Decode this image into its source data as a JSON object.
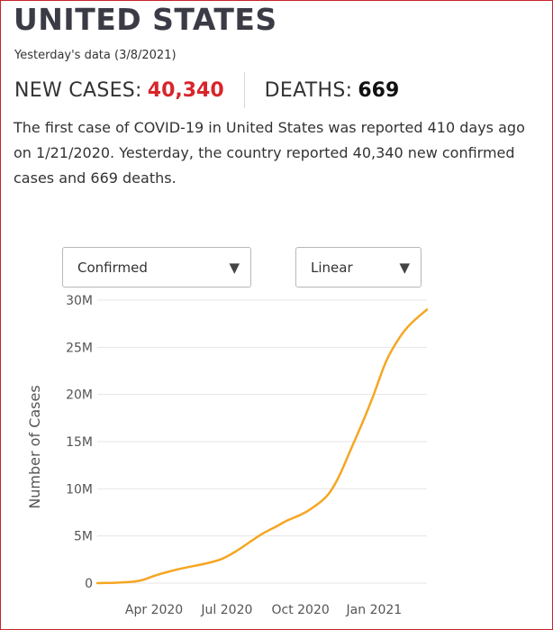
{
  "header": {
    "country": "UNITED STATES",
    "data_date": "Yesterday's data (3/8/2021)"
  },
  "stats": {
    "new_cases_label": "NEW CASES:",
    "new_cases_value": "40,340",
    "deaths_label": "DEATHS:",
    "deaths_value": "669"
  },
  "summary": "The first case of COVID-19 in United States was reported 410 days ago on 1/21/2020. Yesterday, the country reported 40,340 new confirmed cases and 669 deaths.",
  "controls": {
    "metric_selected": "Confirmed",
    "scale_selected": "Linear"
  },
  "colors": {
    "accent_red": "#d8252b",
    "line": "#f5a623",
    "grid": "#e6e6e6"
  },
  "icons": {
    "dropdown": "triangle-down-icon"
  },
  "chart_data": {
    "type": "line",
    "title": "",
    "xlabel": "",
    "ylabel": "Number of Cases",
    "y_tick_labels": [
      "0",
      "5M",
      "10M",
      "15M",
      "20M",
      "25M",
      "30M"
    ],
    "y_ticks": [
      0,
      5000000,
      10000000,
      15000000,
      20000000,
      25000000,
      30000000
    ],
    "ylim": [
      0,
      30000000
    ],
    "x_tick_labels": [
      "Apr 2020",
      "Jul 2020",
      "Oct 2020",
      "Jan 2021"
    ],
    "x_ticks": [
      "2020-04-01",
      "2020-07-01",
      "2020-10-01",
      "2021-01-01"
    ],
    "xlim": [
      "2020-01-21",
      "2021-03-08"
    ],
    "grid": true,
    "series": [
      {
        "name": "",
        "x": [
          "2020-01-21",
          "2020-02-15",
          "2020-03-15",
          "2020-04-01",
          "2020-05-01",
          "2020-06-01",
          "2020-06-20",
          "2020-07-01",
          "2020-07-15",
          "2020-08-01",
          "2020-08-15",
          "2020-09-01",
          "2020-09-15",
          "2020-10-01",
          "2020-10-15",
          "2020-11-01",
          "2020-11-10",
          "2020-11-20",
          "2020-12-01",
          "2020-12-15",
          "2021-01-01",
          "2021-01-15",
          "2021-02-01",
          "2021-02-15",
          "2021-03-08"
        ],
        "y": [
          0,
          30000,
          200000,
          800000,
          1500000,
          2000000,
          2400000,
          2800000,
          3500000,
          4500000,
          5300000,
          6000000,
          6700000,
          7200000,
          7900000,
          9000000,
          10000000,
          11600000,
          13800000,
          16500000,
          20000000,
          23500000,
          26000000,
          27500000,
          29000000
        ]
      }
    ]
  }
}
